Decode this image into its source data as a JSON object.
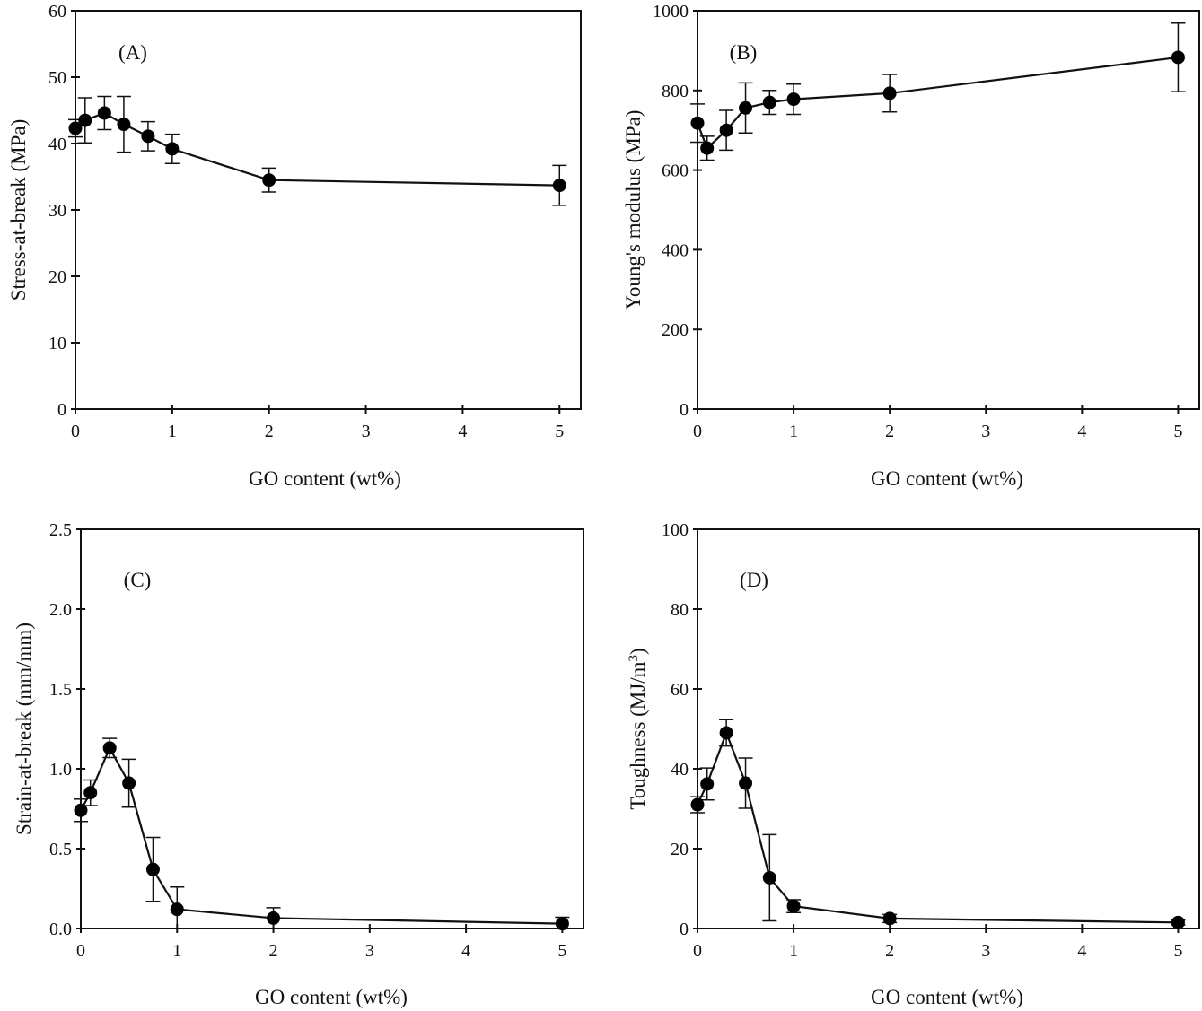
{
  "chart_data": [
    {
      "type": "line",
      "panel": "(A)",
      "xlabel": "GO content (wt%)",
      "ylabel": "Stress-at-break (MPa)",
      "xlim": [
        0,
        5.22
      ],
      "ylim": [
        0,
        60
      ],
      "xticks": [
        0,
        1,
        2,
        3,
        4,
        5
      ],
      "yticks": [
        0,
        10,
        20,
        30,
        40,
        50,
        60
      ],
      "ytick_labels": [
        "0",
        "10",
        "20",
        "30",
        "40",
        "50",
        "60"
      ],
      "x": [
        0,
        0.1,
        0.3,
        0.5,
        0.75,
        1,
        2,
        5
      ],
      "values": [
        42.3,
        43.5,
        44.6,
        42.9,
        41.1,
        39.2,
        34.5,
        33.7
      ],
      "errors": [
        1.3,
        3.4,
        2.5,
        4.2,
        2.2,
        2.2,
        1.8,
        3.0
      ],
      "legend": "none",
      "grid": false
    },
    {
      "type": "line",
      "panel": "(B)",
      "xlabel": "GO content (wt%)",
      "ylabel": "Young's modulus (MPa)",
      "xlim": [
        0,
        5.22
      ],
      "ylim": [
        0,
        1000
      ],
      "xticks": [
        0,
        1,
        2,
        3,
        4,
        5
      ],
      "yticks": [
        0,
        200,
        400,
        600,
        800,
        1000
      ],
      "ytick_labels": [
        "0",
        "200",
        "400",
        "600",
        "800",
        "1000"
      ],
      "x": [
        0,
        0.1,
        0.3,
        0.5,
        0.75,
        1,
        2,
        5
      ],
      "values": [
        718,
        655,
        700,
        756,
        770,
        778,
        793,
        883
      ],
      "errors": [
        48,
        30,
        50,
        63,
        30,
        38,
        47,
        86
      ],
      "legend": "none",
      "grid": false
    },
    {
      "type": "line",
      "panel": "(C)",
      "xlabel": "GO content (wt%)",
      "ylabel": "Strain-at-break (mm/mm)",
      "xlim": [
        0,
        5.22
      ],
      "ylim": [
        0,
        2.5
      ],
      "xticks": [
        0,
        1,
        2,
        3,
        4,
        5
      ],
      "yticks": [
        0,
        0.5,
        1.0,
        1.5,
        2.0,
        2.5
      ],
      "ytick_labels": [
        "0.0",
        "0.5",
        "1.0",
        "1.5",
        "2.0",
        "2.5"
      ],
      "x": [
        0,
        0.1,
        0.3,
        0.5,
        0.75,
        1,
        2,
        5
      ],
      "values": [
        0.74,
        0.85,
        1.13,
        0.91,
        0.37,
        0.12,
        0.065,
        0.03
      ],
      "errors": [
        0.07,
        0.08,
        0.06,
        0.15,
        0.2,
        0.14,
        0.065,
        0.04
      ],
      "legend": "none",
      "grid": false
    },
    {
      "type": "line",
      "panel": "(D)",
      "xlabel": "GO content (wt%)",
      "ylabel": "Toughness (MJ/m",
      "ylabel_superscript": "3",
      "ylabel_suffix": ")",
      "xlim": [
        0,
        5.22
      ],
      "ylim": [
        0,
        100
      ],
      "xticks": [
        0,
        1,
        2,
        3,
        4,
        5
      ],
      "yticks": [
        0,
        20,
        40,
        60,
        80,
        100
      ],
      "ytick_labels": [
        "0",
        "20",
        "40",
        "60",
        "80",
        "100"
      ],
      "x": [
        0,
        0.1,
        0.3,
        0.5,
        0.75,
        1,
        2,
        5
      ],
      "values": [
        31,
        36.2,
        49,
        36.4,
        12.7,
        5.6,
        2.5,
        1.5
      ],
      "errors": [
        2,
        4,
        3.3,
        6.3,
        10.8,
        1.6,
        1.0,
        0.6
      ],
      "legend": "none",
      "grid": false
    }
  ]
}
